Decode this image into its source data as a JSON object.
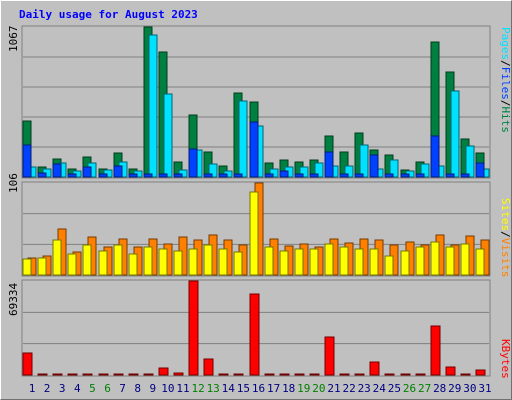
{
  "chart_data": {
    "type": "bar",
    "title": "Daily usage for August 2023",
    "categories": [
      "1",
      "2",
      "3",
      "4",
      "5",
      "6",
      "7",
      "8",
      "9",
      "10",
      "11",
      "12",
      "13",
      "14",
      "15",
      "16",
      "17",
      "18",
      "19",
      "20",
      "21",
      "22",
      "23",
      "24",
      "25",
      "26",
      "27",
      "28",
      "29",
      "30",
      "31"
    ],
    "weekend_days": [
      "5",
      "6",
      "12",
      "13",
      "19",
      "20",
      "26",
      "27"
    ],
    "panels": [
      {
        "id": "hits",
        "y_max_label": "1067",
        "ylim": [
          0,
          1067
        ],
        "legend": [
          "Pages",
          "/",
          "Files",
          "/",
          "Hits"
        ],
        "series": [
          {
            "name": "Hits",
            "color": "#008040",
            "values": [
              400,
              70,
              130,
              60,
              140,
              60,
              170,
              60,
              1067,
              890,
              110,
              440,
              180,
              80,
              600,
              530,
              100,
              120,
              110,
              120,
              290,
              180,
              310,
              190,
              160,
              50,
              110,
              960,
              750,
              270,
              170
            ]
          },
          {
            "name": "Files",
            "color": "#00e0ff",
            "values": [
              70,
              60,
              100,
              40,
              100,
              50,
              110,
              40,
              1010,
              590,
              50,
              190,
              90,
              40,
              540,
              360,
              60,
              70,
              70,
              100,
              80,
              80,
              230,
              60,
              120,
              40,
              90,
              80,
              610,
              220,
              60
            ]
          },
          {
            "name": "Pages",
            "color": "#0040ff",
            "values": [
              230,
              30,
              90,
              20,
              70,
              20,
              80,
              20,
              20,
              20,
              20,
              200,
              20,
              20,
              20,
              390,
              20,
              40,
              20,
              20,
              180,
              20,
              20,
              160,
              20,
              20,
              20,
              290,
              20,
              20,
              100
            ]
          }
        ]
      },
      {
        "id": "visits",
        "y_max_label": "106",
        "ylim": [
          0,
          106
        ],
        "legend": [
          "Sites",
          "/",
          "Visits"
        ],
        "series": [
          {
            "name": "Visits",
            "color": "#ff8000",
            "values": [
              20,
              22,
              53,
              26,
              44,
              32,
              42,
              32,
              41,
              36,
              44,
              40,
              46,
              40,
              35,
              106,
              42,
              33,
              36,
              32,
              42,
              37,
              41,
              40,
              35,
              38,
              35,
              46,
              35,
              45,
              40
            ]
          },
          {
            "name": "Sites",
            "color": "#ffff00",
            "values": [
              18,
              20,
              40,
              24,
              34,
              28,
              34,
              24,
              32,
              30,
              28,
              30,
              34,
              30,
              26,
              96,
              32,
              28,
              30,
              30,
              36,
              32,
              30,
              30,
              22,
              28,
              32,
              38,
              32,
              36,
              30
            ]
          }
        ]
      },
      {
        "id": "kbytes",
        "y_max_label": "69334",
        "ylim": [
          0,
          69334
        ],
        "legend": [
          "KBytes"
        ],
        "series": [
          {
            "name": "KBytes",
            "color": "#ff0000",
            "values": [
              16200,
              0,
              0,
              0,
              0,
              0,
              0,
              0,
              0,
              5100,
              1700,
              69334,
              12000,
              0,
              0,
              60000,
              0,
              0,
              0,
              0,
              28200,
              0,
              0,
              9800,
              0,
              0,
              0,
              36500,
              5600,
              1000,
              3900
            ]
          }
        ]
      }
    ],
    "colors": {
      "title": "#0000ff",
      "panel_bg": "#c0c0c0",
      "grid": "#808080",
      "day_label": "#000080",
      "weekend_label": "#008000",
      "legend_sep": "#000000"
    }
  }
}
